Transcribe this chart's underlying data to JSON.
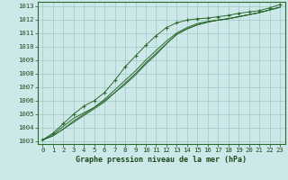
{
  "xlabel": "Graphe pression niveau de la mer (hPa)",
  "xlim": [
    -0.5,
    23.5
  ],
  "ylim": [
    1002.8,
    1013.3
  ],
  "yticks": [
    1003,
    1004,
    1005,
    1006,
    1007,
    1008,
    1009,
    1010,
    1011,
    1012,
    1013
  ],
  "xticks": [
    0,
    1,
    2,
    3,
    4,
    5,
    6,
    7,
    8,
    9,
    10,
    11,
    12,
    13,
    14,
    15,
    16,
    17,
    18,
    19,
    20,
    21,
    22,
    23
  ],
  "bg_color": "#cce8e8",
  "grid_color": "#a0c8c8",
  "line_color": "#2d6a2d",
  "font_color": "#1a4a1a",
  "label_fontsize": 6.0,
  "tick_fontsize": 5.2,
  "border_color": "#2d6a2d",
  "series_plain": [
    [
      1003.1,
      1003.5,
      1004.1,
      1004.7,
      1005.1,
      1005.5,
      1006.0,
      1006.6,
      1007.2,
      1007.9,
      1008.7,
      1009.4,
      1010.2,
      1010.9,
      1011.3,
      1011.6,
      1011.8,
      1011.95,
      1012.05,
      1012.2,
      1012.35,
      1012.5,
      1012.7,
      1012.9
    ],
    [
      1003.1,
      1003.4,
      1003.9,
      1004.5,
      1005.0,
      1005.5,
      1006.1,
      1006.8,
      1007.5,
      1008.2,
      1009.0,
      1009.7,
      1010.4,
      1011.0,
      1011.4,
      1011.7,
      1011.85,
      1011.95,
      1012.05,
      1012.2,
      1012.35,
      1012.5,
      1012.7,
      1012.9
    ],
    [
      1003.1,
      1003.4,
      1003.9,
      1004.4,
      1004.9,
      1005.4,
      1005.9,
      1006.6,
      1007.3,
      1008.0,
      1008.8,
      1009.5,
      1010.2,
      1010.9,
      1011.3,
      1011.6,
      1011.8,
      1011.95,
      1012.05,
      1012.2,
      1012.35,
      1012.5,
      1012.7,
      1012.9
    ]
  ],
  "series_marker": [
    1003.1,
    1003.6,
    1004.3,
    1005.0,
    1005.6,
    1006.0,
    1006.6,
    1007.5,
    1008.5,
    1009.3,
    1010.1,
    1010.8,
    1011.4,
    1011.75,
    1011.95,
    1012.05,
    1012.1,
    1012.2,
    1012.3,
    1012.45,
    1012.55,
    1012.65,
    1012.85,
    1013.1
  ]
}
